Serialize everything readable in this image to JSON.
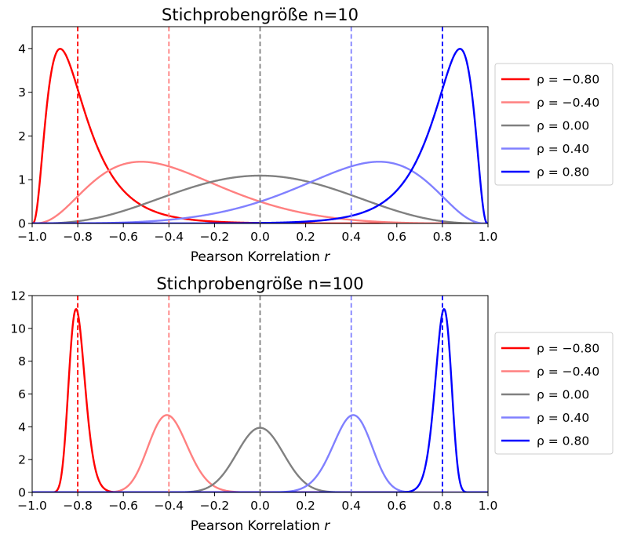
{
  "chart_data": [
    {
      "type": "line",
      "title": "Stichprobengröße n=10",
      "n": 10,
      "xlabel": "Pearson Korrelation",
      "xlabel_var": "r",
      "ylabel": "",
      "xlim": [
        -1.0,
        1.0
      ],
      "ylim": [
        0,
        4.5
      ],
      "xticks": [
        "−1.0",
        "−0.8",
        "−0.6",
        "−0.4",
        "−0.2",
        "0.0",
        "0.2",
        "0.4",
        "0.6",
        "0.8",
        "1.0"
      ],
      "yticks": [
        "0",
        "1",
        "2",
        "3",
        "4"
      ],
      "grid": false,
      "legend_position": "outside-right",
      "series": [
        {
          "name": "ρ = −0.80",
          "rho": -0.8,
          "color": "#ff0000"
        },
        {
          "name": "ρ = −0.40",
          "rho": -0.4,
          "color": "#ff8080"
        },
        {
          "name": "ρ = 0.00",
          "rho": 0.0,
          "color": "#808080"
        },
        {
          "name": "ρ = 0.40",
          "rho": 0.4,
          "color": "#8080ff"
        },
        {
          "name": "ρ = 0.80",
          "rho": 0.8,
          "color": "#0000ff"
        }
      ]
    },
    {
      "type": "line",
      "title": "Stichprobengröße n=100",
      "n": 100,
      "xlabel": "Pearson Korrelation",
      "xlabel_var": "r",
      "ylabel": "",
      "xlim": [
        -1.0,
        1.0
      ],
      "ylim": [
        0,
        12
      ],
      "xticks": [
        "−1.0",
        "−0.8",
        "−0.6",
        "−0.4",
        "−0.2",
        "0.0",
        "0.2",
        "0.4",
        "0.6",
        "0.8",
        "1.0"
      ],
      "yticks": [
        "0",
        "2",
        "4",
        "6",
        "8",
        "10",
        "12"
      ],
      "grid": false,
      "legend_position": "outside-right",
      "series": [
        {
          "name": "ρ = −0.80",
          "rho": -0.8,
          "color": "#ff0000"
        },
        {
          "name": "ρ = −0.40",
          "rho": -0.4,
          "color": "#ff8080"
        },
        {
          "name": "ρ = 0.00",
          "rho": 0.0,
          "color": "#808080"
        },
        {
          "name": "ρ = 0.40",
          "rho": 0.4,
          "color": "#8080ff"
        },
        {
          "name": "ρ = 0.80",
          "rho": 0.8,
          "color": "#0000ff"
        }
      ]
    }
  ]
}
